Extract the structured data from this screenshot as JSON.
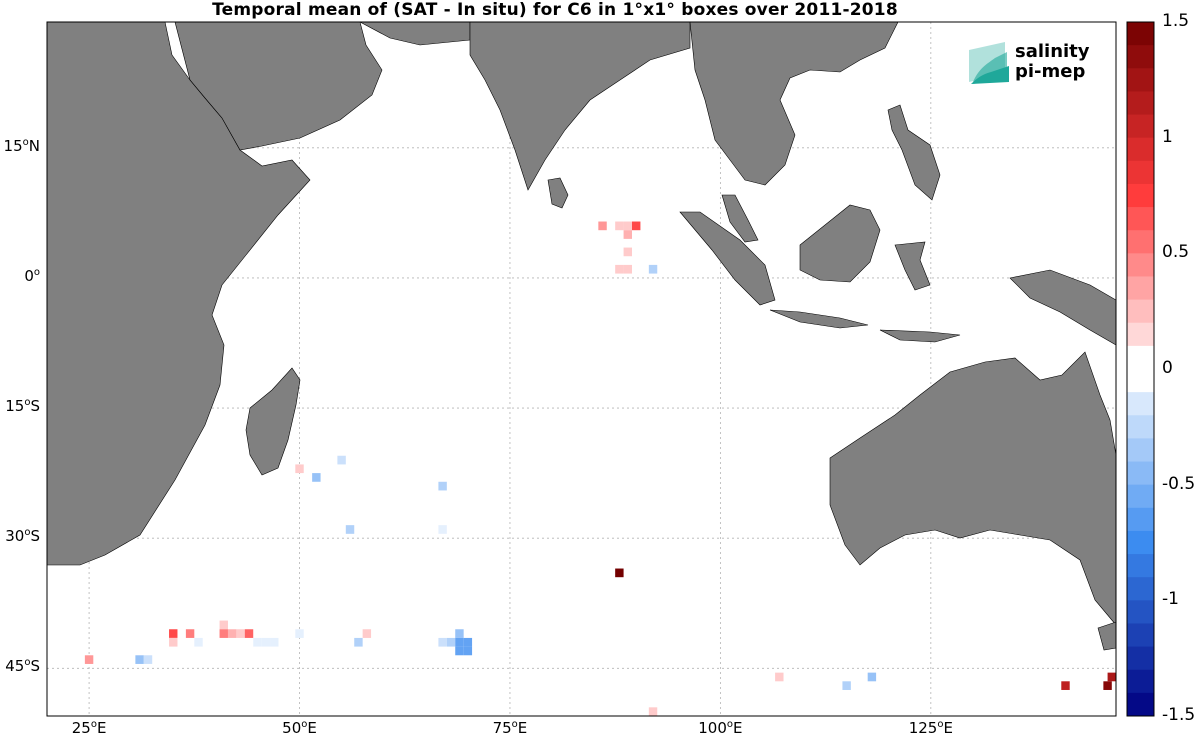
{
  "title": "Temporal mean of (SAT - In situ) for C6 in 1°x1° boxes over 2011-2018",
  "logo": {
    "line1": "salinity",
    "line2": "pi-mep",
    "color": "#1fa89a"
  },
  "colors": {
    "land": "#808080",
    "ocean": "#ffffff",
    "grid": "#b4b4b4"
  },
  "axes": {
    "lat_ticks": [
      {
        "value": 15,
        "text": "15",
        "hemi": "N"
      },
      {
        "value": 0,
        "text": "0",
        "hemi": ""
      },
      {
        "value": -15,
        "text": "15",
        "hemi": "S"
      },
      {
        "value": -30,
        "text": "30",
        "hemi": "S"
      },
      {
        "value": -45,
        "text": "45",
        "hemi": "S"
      }
    ],
    "lon_ticks": [
      {
        "value": 25,
        "text": "25",
        "hemi": "E"
      },
      {
        "value": 50,
        "text": "50",
        "hemi": "E"
      },
      {
        "value": 75,
        "text": "75",
        "hemi": "E"
      },
      {
        "value": 100,
        "text": "100",
        "hemi": "E"
      },
      {
        "value": 125,
        "text": "125",
        "hemi": "E"
      }
    ]
  },
  "colorbar": {
    "min": -1.5,
    "max": 1.5,
    "tick_labels": [
      "1.5",
      "1",
      "0.5",
      "0",
      "-0.5",
      "-1",
      "-1.5"
    ],
    "tick_values": [
      1.5,
      1,
      0.5,
      0,
      -0.5,
      -1,
      -1.5
    ],
    "colormap": "blue-white-red"
  },
  "chart_data": {
    "type": "heatmap",
    "title": "Temporal mean of (SAT - In situ) for C6 in 1°x1° boxes over 2011-2018",
    "xlabel": "",
    "ylabel": "",
    "xlim": [
      20,
      147
    ],
    "ylim": [
      -50.5,
      29.5
    ],
    "grid": true,
    "units": "",
    "cells": [
      {
        "lon": 86,
        "lat": 6,
        "value": 0.4
      },
      {
        "lon": 88,
        "lat": 6,
        "value": 0.2
      },
      {
        "lon": 89,
        "lat": 6,
        "value": 0.2
      },
      {
        "lon": 90,
        "lat": 6,
        "value": 0.7
      },
      {
        "lon": 89,
        "lat": 5,
        "value": 0.3
      },
      {
        "lon": 89,
        "lat": 3,
        "value": 0.2
      },
      {
        "lon": 88,
        "lat": 1,
        "value": 0.2
      },
      {
        "lon": 89,
        "lat": 1,
        "value": 0.2
      },
      {
        "lon": 92,
        "lat": 1,
        "value": -0.3
      },
      {
        "lon": 50,
        "lat": -22,
        "value": 0.2
      },
      {
        "lon": 52,
        "lat": -23,
        "value": -0.4
      },
      {
        "lon": 55,
        "lat": -21,
        "value": -0.2
      },
      {
        "lon": 67,
        "lat": -24,
        "value": -0.3
      },
      {
        "lon": 56,
        "lat": -29,
        "value": -0.3
      },
      {
        "lon": 67,
        "lat": -29,
        "value": -0.1
      },
      {
        "lon": 88,
        "lat": -34,
        "value": 1.5
      },
      {
        "lon": 41,
        "lat": -40,
        "value": 0.2
      },
      {
        "lon": 35,
        "lat": -41,
        "value": 0.7
      },
      {
        "lon": 37,
        "lat": -41,
        "value": 0.5
      },
      {
        "lon": 41,
        "lat": -41,
        "value": 0.5
      },
      {
        "lon": 42,
        "lat": -41,
        "value": 0.3
      },
      {
        "lon": 43,
        "lat": -41,
        "value": 0.2
      },
      {
        "lon": 44,
        "lat": -41,
        "value": 0.6
      },
      {
        "lon": 50,
        "lat": -41,
        "value": -0.1
      },
      {
        "lon": 58,
        "lat": -41,
        "value": 0.2
      },
      {
        "lon": 69,
        "lat": -41,
        "value": -0.4
      },
      {
        "lon": 35,
        "lat": -42,
        "value": 0.2
      },
      {
        "lon": 38,
        "lat": -42,
        "value": -0.1
      },
      {
        "lon": 45,
        "lat": -42,
        "value": -0.1
      },
      {
        "lon": 46,
        "lat": -42,
        "value": -0.1
      },
      {
        "lon": 47,
        "lat": -42,
        "value": -0.1
      },
      {
        "lon": 57,
        "lat": -42,
        "value": -0.3
      },
      {
        "lon": 67,
        "lat": -42,
        "value": -0.2
      },
      {
        "lon": 68,
        "lat": -42,
        "value": -0.3
      },
      {
        "lon": 69,
        "lat": -42,
        "value": -0.6
      },
      {
        "lon": 70,
        "lat": -42,
        "value": -0.6
      },
      {
        "lon": 69,
        "lat": -43,
        "value": -0.6
      },
      {
        "lon": 70,
        "lat": -43,
        "value": -0.6
      },
      {
        "lon": 25,
        "lat": -44,
        "value": 0.4
      },
      {
        "lon": 31,
        "lat": -44,
        "value": -0.4
      },
      {
        "lon": 32,
        "lat": -44,
        "value": -0.2
      },
      {
        "lon": 107,
        "lat": -46,
        "value": 0.2
      },
      {
        "lon": 118,
        "lat": -46,
        "value": -0.4
      },
      {
        "lon": 115,
        "lat": -47,
        "value": -0.3
      },
      {
        "lon": 141,
        "lat": -47,
        "value": 1.1
      },
      {
        "lon": 146,
        "lat": -47,
        "value": 1.4
      },
      {
        "lon": 147,
        "lat": -46,
        "value": 1.2
      },
      {
        "lon": 92,
        "lat": -50,
        "value": 0.2
      }
    ]
  }
}
